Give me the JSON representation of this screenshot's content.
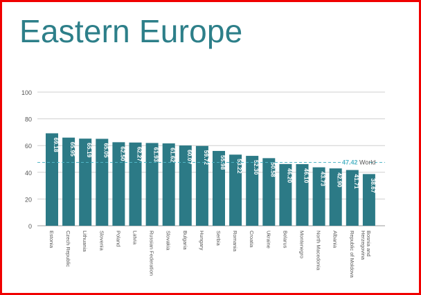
{
  "chart_data": {
    "type": "bar",
    "title": "Eastern Europe",
    "categories": [
      "Estonia",
      "Czech Republic",
      "Lithuania",
      "Slovenia",
      "Poland",
      "Latvia",
      "Russian Federation",
      "Slovakia",
      "Bulgaria",
      "Hungary",
      "Serbia",
      "Romania",
      "Croatia",
      "Ukraine",
      "Belarus",
      "Montenegro",
      "North Macedonia",
      "Albania",
      "Republic of Moldova",
      "Bosnia and Herzegovina"
    ],
    "values": [
      69.18,
      65.95,
      65.19,
      65.05,
      62.5,
      62.27,
      61.93,
      61.62,
      60.07,
      59.72,
      55.98,
      53.22,
      52.3,
      50.58,
      46.2,
      46.1,
      43.73,
      42.9,
      41.71,
      38.67
    ],
    "value_labels": [
      "69.18",
      "65.95",
      "65.19",
      "65.05",
      "62.50",
      "62.27",
      "61.93",
      "61.62",
      "60.07",
      "59.72",
      "55.98",
      "53.22",
      "52.30",
      "50.58",
      "46.20",
      "46.10",
      "43.73",
      "42.90",
      "41.71",
      "38.67"
    ],
    "ylim": [
      0,
      100
    ],
    "yticks": [
      0,
      20,
      40,
      60,
      80,
      100
    ],
    "grid": true,
    "reference_line": {
      "value": 47.42,
      "label_value": "47.42",
      "label_text": "World"
    },
    "colors": {
      "bar": "#2c7a86",
      "reference": "#52b6c6",
      "title": "#2d7f89",
      "frame": "#f00000"
    }
  }
}
